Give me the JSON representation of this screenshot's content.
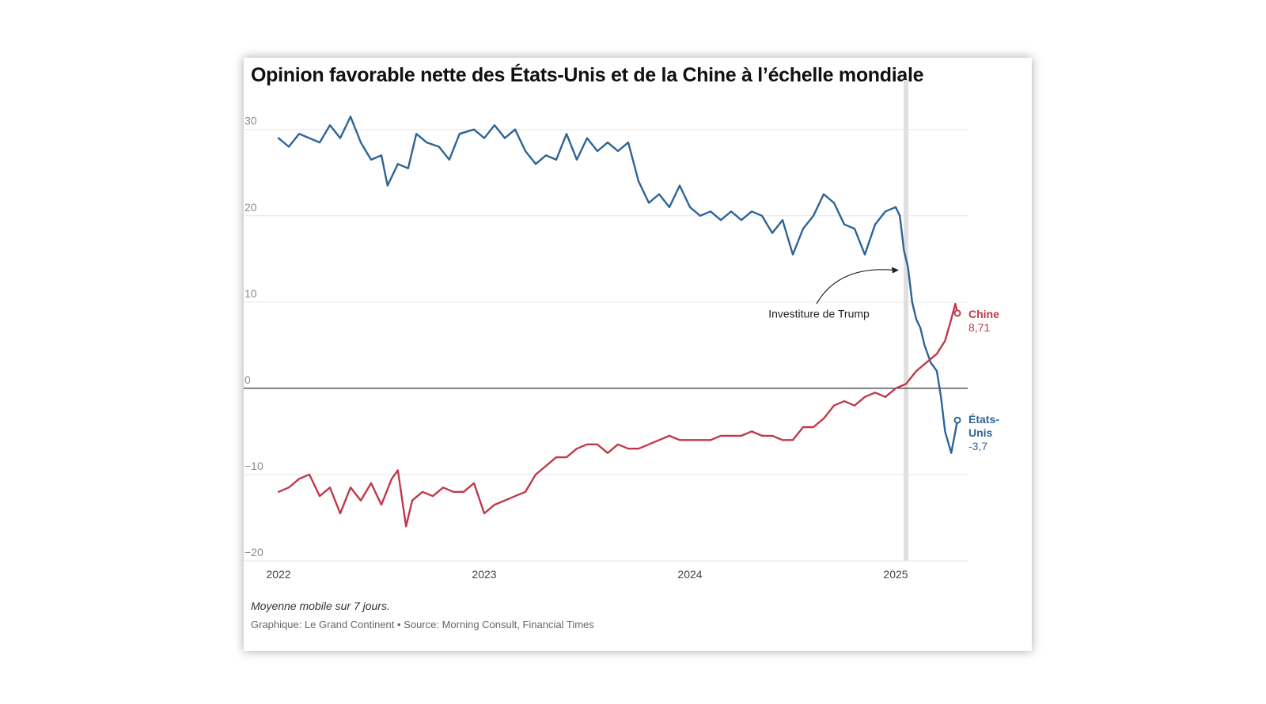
{
  "chart_data": {
    "type": "line",
    "title": "Opinion favorable nette des États-Unis et de la Chine à l’échelle mondiale",
    "note": "Moyenne mobile sur 7 jours.",
    "credit": "Graphique: Le Grand Continent • Source: Morning Consult, Financial Times",
    "y_ticks": [
      "30",
      "20",
      "10",
      "0",
      "−10",
      "−20"
    ],
    "y_tick_values": [
      30,
      20,
      10,
      0,
      -10,
      -20
    ],
    "ylim": [
      -20,
      33
    ],
    "x_ticks": [
      "2022",
      "2023",
      "2024",
      "2025"
    ],
    "x_tick_values": [
      2022.0,
      2023.0,
      2024.0,
      2025.0
    ],
    "xlim": [
      2022.0,
      2025.35
    ],
    "grid": true,
    "zero_line": true,
    "highlight_band": {
      "x": 2025.05
    },
    "annotation": {
      "text": "Investiture de Trump",
      "x": 2025.05
    },
    "colors": {
      "us": "#2e6496",
      "china": "#c0394a",
      "band": "#e0e0e0",
      "grid": "#e6e6e6",
      "zero": "#333333"
    },
    "series": [
      {
        "name": "États-Unis",
        "end_label": [
          "États-",
          "Unis"
        ],
        "end_value_label": "-3,7",
        "color": "#2e6496",
        "points": [
          [
            2022.0,
            29
          ],
          [
            2022.05,
            28
          ],
          [
            2022.1,
            29.5
          ],
          [
            2022.15,
            29
          ],
          [
            2022.2,
            28.5
          ],
          [
            2022.25,
            30.5
          ],
          [
            2022.3,
            29
          ],
          [
            2022.35,
            31.5
          ],
          [
            2022.4,
            28.5
          ],
          [
            2022.45,
            26.5
          ],
          [
            2022.5,
            27
          ],
          [
            2022.53,
            23.5
          ],
          [
            2022.58,
            26
          ],
          [
            2022.63,
            25.5
          ],
          [
            2022.67,
            29.5
          ],
          [
            2022.72,
            28.5
          ],
          [
            2022.78,
            28
          ],
          [
            2022.83,
            26.5
          ],
          [
            2022.88,
            29.5
          ],
          [
            2022.95,
            30
          ],
          [
            2023.0,
            29
          ],
          [
            2023.05,
            30.5
          ],
          [
            2023.1,
            29
          ],
          [
            2023.15,
            30
          ],
          [
            2023.2,
            27.5
          ],
          [
            2023.25,
            26
          ],
          [
            2023.3,
            27
          ],
          [
            2023.35,
            26.5
          ],
          [
            2023.4,
            29.5
          ],
          [
            2023.45,
            26.5
          ],
          [
            2023.5,
            29
          ],
          [
            2023.55,
            27.5
          ],
          [
            2023.6,
            28.5
          ],
          [
            2023.65,
            27.5
          ],
          [
            2023.7,
            28.5
          ],
          [
            2023.75,
            24
          ],
          [
            2023.8,
            21.5
          ],
          [
            2023.85,
            22.5
          ],
          [
            2023.9,
            21
          ],
          [
            2023.95,
            23.5
          ],
          [
            2024.0,
            21
          ],
          [
            2024.05,
            20
          ],
          [
            2024.1,
            20.5
          ],
          [
            2024.15,
            19.5
          ],
          [
            2024.2,
            20.5
          ],
          [
            2024.25,
            19.5
          ],
          [
            2024.3,
            20.5
          ],
          [
            2024.35,
            20
          ],
          [
            2024.4,
            18
          ],
          [
            2024.45,
            19.5
          ],
          [
            2024.5,
            15.5
          ],
          [
            2024.55,
            18.5
          ],
          [
            2024.6,
            20
          ],
          [
            2024.65,
            22.5
          ],
          [
            2024.7,
            21.5
          ],
          [
            2024.75,
            19
          ],
          [
            2024.8,
            18.5
          ],
          [
            2024.85,
            15.5
          ],
          [
            2024.9,
            19
          ],
          [
            2024.95,
            20.5
          ],
          [
            2025.0,
            21
          ],
          [
            2025.02,
            20
          ],
          [
            2025.04,
            16
          ],
          [
            2025.06,
            14
          ],
          [
            2025.08,
            10
          ],
          [
            2025.1,
            8
          ],
          [
            2025.12,
            7
          ],
          [
            2025.14,
            5
          ],
          [
            2025.17,
            3
          ],
          [
            2025.2,
            2
          ],
          [
            2025.22,
            -1
          ],
          [
            2025.24,
            -5
          ],
          [
            2025.27,
            -7.5
          ],
          [
            2025.29,
            -5
          ],
          [
            2025.3,
            -3.7
          ]
        ]
      },
      {
        "name": "Chine",
        "end_label": [
          "Chine"
        ],
        "end_value_label": "8,71",
        "color": "#c0394a",
        "points": [
          [
            2022.0,
            -12
          ],
          [
            2022.05,
            -11.5
          ],
          [
            2022.1,
            -10.5
          ],
          [
            2022.15,
            -10
          ],
          [
            2022.2,
            -12.5
          ],
          [
            2022.25,
            -11.5
          ],
          [
            2022.3,
            -14.5
          ],
          [
            2022.35,
            -11.5
          ],
          [
            2022.4,
            -13
          ],
          [
            2022.45,
            -11
          ],
          [
            2022.5,
            -13.5
          ],
          [
            2022.55,
            -10.5
          ],
          [
            2022.58,
            -9.5
          ],
          [
            2022.62,
            -16
          ],
          [
            2022.65,
            -13
          ],
          [
            2022.7,
            -12
          ],
          [
            2022.75,
            -12.5
          ],
          [
            2022.8,
            -11.5
          ],
          [
            2022.85,
            -12
          ],
          [
            2022.9,
            -12
          ],
          [
            2022.95,
            -11
          ],
          [
            2023.0,
            -14.5
          ],
          [
            2023.05,
            -13.5
          ],
          [
            2023.1,
            -13
          ],
          [
            2023.15,
            -12.5
          ],
          [
            2023.2,
            -12
          ],
          [
            2023.25,
            -10
          ],
          [
            2023.3,
            -9
          ],
          [
            2023.35,
            -8
          ],
          [
            2023.4,
            -8
          ],
          [
            2023.45,
            -7
          ],
          [
            2023.5,
            -6.5
          ],
          [
            2023.55,
            -6.5
          ],
          [
            2023.6,
            -7.5
          ],
          [
            2023.65,
            -6.5
          ],
          [
            2023.7,
            -7
          ],
          [
            2023.75,
            -7
          ],
          [
            2023.8,
            -6.5
          ],
          [
            2023.85,
            -6
          ],
          [
            2023.9,
            -5.5
          ],
          [
            2023.95,
            -6
          ],
          [
            2024.0,
            -6
          ],
          [
            2024.05,
            -6
          ],
          [
            2024.1,
            -6
          ],
          [
            2024.15,
            -5.5
          ],
          [
            2024.2,
            -5.5
          ],
          [
            2024.25,
            -5.5
          ],
          [
            2024.3,
            -5
          ],
          [
            2024.35,
            -5.5
          ],
          [
            2024.4,
            -5.5
          ],
          [
            2024.45,
            -6
          ],
          [
            2024.5,
            -6
          ],
          [
            2024.55,
            -4.5
          ],
          [
            2024.6,
            -4.5
          ],
          [
            2024.65,
            -3.5
          ],
          [
            2024.7,
            -2
          ],
          [
            2024.75,
            -1.5
          ],
          [
            2024.8,
            -2
          ],
          [
            2024.85,
            -1
          ],
          [
            2024.9,
            -0.5
          ],
          [
            2024.95,
            -1
          ],
          [
            2025.0,
            0
          ],
          [
            2025.05,
            0.5
          ],
          [
            2025.1,
            2
          ],
          [
            2025.15,
            3
          ],
          [
            2025.2,
            4
          ],
          [
            2025.24,
            5.5
          ],
          [
            2025.27,
            8
          ],
          [
            2025.29,
            9.8
          ],
          [
            2025.3,
            8.71
          ]
        ]
      }
    ]
  }
}
